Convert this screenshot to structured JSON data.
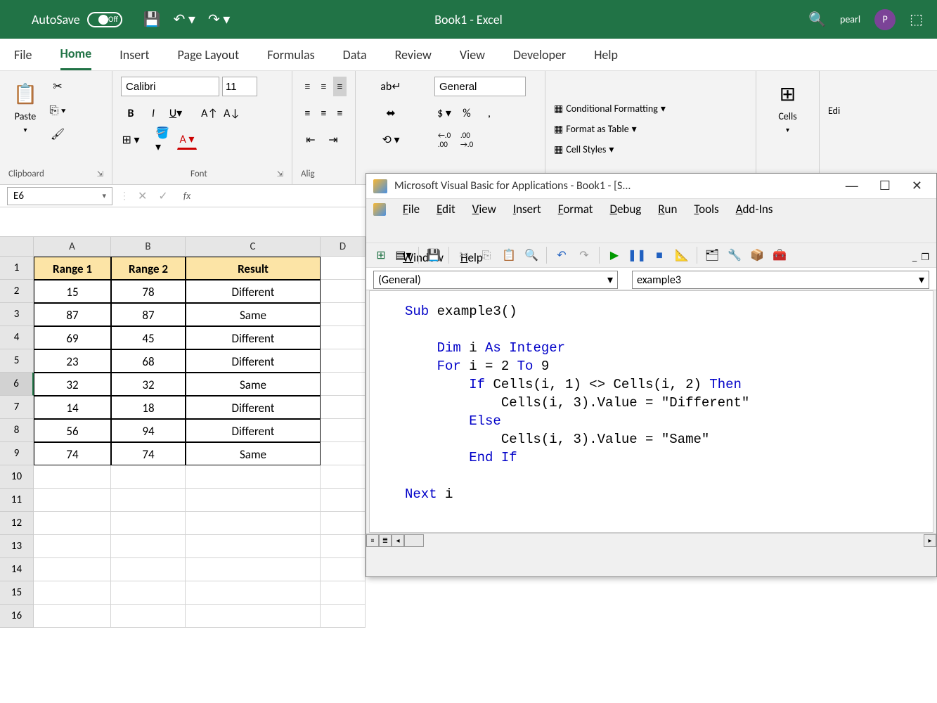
{
  "title_bar": {
    "autosave_label": "AutoSave",
    "autosave_state": "Off",
    "app_title": "Book1  -  Excel",
    "user_name": "pearl",
    "user_initial": "P"
  },
  "tabs": [
    "File",
    "Home",
    "Insert",
    "Page Layout",
    "Formulas",
    "Data",
    "Review",
    "View",
    "Developer",
    "Help"
  ],
  "active_tab": "Home",
  "ribbon": {
    "clipboard_label": "Clipboard",
    "paste_label": "Paste",
    "font_label": "Font",
    "font_name": "Calibri",
    "font_size": "11",
    "alignment_label": "Alig",
    "number_label": "",
    "number_format": "General",
    "styles": {
      "cond_format": "Conditional Formatting",
      "table": "Format as Table",
      "cell_styles": "Cell Styles"
    },
    "cells_label": "Cells",
    "editing_label": "Edi"
  },
  "formula_bar": {
    "name_box": "E6",
    "formula": ""
  },
  "grid": {
    "col_widths": {
      "A": 110,
      "B": 106,
      "C": 192,
      "D": 64
    },
    "columns": [
      "A",
      "B",
      "C",
      "D"
    ],
    "row_count": 16,
    "selected_cell": "E6",
    "selected_row": 6,
    "header_bg": "#fce4a6",
    "headers": [
      "Range 1",
      "Range 2",
      "Result"
    ],
    "data": [
      [
        "15",
        "78",
        "Different"
      ],
      [
        "87",
        "87",
        "Same"
      ],
      [
        "69",
        "45",
        "Different"
      ],
      [
        "23",
        "68",
        "Different"
      ],
      [
        "32",
        "32",
        "Same"
      ],
      [
        "14",
        "18",
        "Different"
      ],
      [
        "56",
        "94",
        "Different"
      ],
      [
        "74",
        "74",
        "Same"
      ]
    ]
  },
  "vba": {
    "title": "Microsoft Visual Basic for Applications - Book1 - [S...",
    "menu": [
      "File",
      "Edit",
      "View",
      "Insert",
      "Format",
      "Debug",
      "Run",
      "Tools",
      "Add-Ins",
      "Window",
      "Help"
    ],
    "dd_left": "(General)",
    "dd_right": "example3",
    "code_lines": [
      {
        "indent": 0,
        "tokens": [
          {
            "t": "Sub ",
            "c": "kw"
          },
          {
            "t": "example3()"
          }
        ]
      },
      {
        "indent": 0,
        "tokens": []
      },
      {
        "indent": 1,
        "tokens": [
          {
            "t": "Dim ",
            "c": "kw"
          },
          {
            "t": "i "
          },
          {
            "t": "As Integer",
            "c": "kw"
          }
        ]
      },
      {
        "indent": 1,
        "tokens": [
          {
            "t": "For ",
            "c": "kw"
          },
          {
            "t": "i = 2 "
          },
          {
            "t": "To ",
            "c": "kw"
          },
          {
            "t": "9"
          }
        ]
      },
      {
        "indent": 2,
        "tokens": [
          {
            "t": "If ",
            "c": "kw"
          },
          {
            "t": "Cells(i, 1) <> Cells(i, 2) "
          },
          {
            "t": "Then",
            "c": "kw"
          }
        ]
      },
      {
        "indent": 3,
        "tokens": [
          {
            "t": "Cells(i, 3).Value = \"Different\""
          }
        ]
      },
      {
        "indent": 2,
        "tokens": [
          {
            "t": "Else",
            "c": "kw"
          }
        ]
      },
      {
        "indent": 3,
        "tokens": [
          {
            "t": "Cells(i, 3).Value = \"Same\""
          }
        ]
      },
      {
        "indent": 2,
        "tokens": [
          {
            "t": "End If",
            "c": "kw"
          }
        ]
      },
      {
        "indent": 0,
        "tokens": []
      },
      {
        "indent": 0,
        "tokens": [
          {
            "t": "Next ",
            "c": "kw"
          },
          {
            "t": "i"
          }
        ]
      }
    ]
  }
}
